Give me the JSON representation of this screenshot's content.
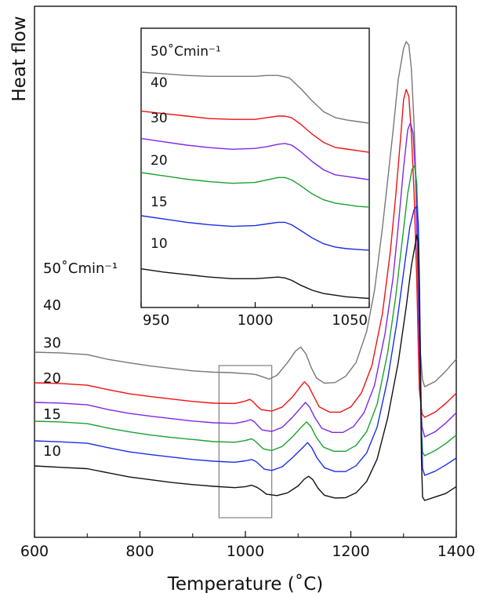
{
  "chart_data": [
    {
      "type": "line",
      "title": "",
      "xlabel": "Temperature (˚C)",
      "ylabel": "Heat flow",
      "xlim": [
        600,
        1400
      ],
      "x_ticks": [
        600,
        800,
        1000,
        1200,
        1400
      ],
      "x_tick_labels": [
        "600",
        "800",
        "1000",
        "1200",
        "1400"
      ],
      "y_ticks_shown": false,
      "grid": false,
      "legend": "series labels written at the left end of each curve",
      "highlight_box": {
        "x_range": [
          950,
          1050
        ],
        "color": "#888888"
      },
      "series": [
        {
          "name": "50˚Cmin⁻¹",
          "color": "#777777",
          "x": [
            600,
            650,
            700,
            740,
            780,
            820,
            860,
            900,
            940,
            970,
            1000,
            1010,
            1020,
            1030,
            1045,
            1060,
            1080,
            1095,
            1105,
            1115,
            1125,
            1135,
            1150,
            1170,
            1190,
            1210,
            1230,
            1245,
            1260,
            1270,
            1280,
            1290,
            1300,
            1305,
            1310,
            1315,
            1320,
            1325,
            1330,
            1332,
            1336,
            1340,
            1360,
            1380,
            1400
          ],
          "y": [
            1.0,
            0.98,
            0.93,
            0.79,
            0.69,
            0.6,
            0.53,
            0.46,
            0.42,
            0.41,
            0.38,
            0.37,
            0.35,
            0.3,
            0.22,
            0.33,
            0.7,
            1.03,
            1.15,
            0.95,
            0.55,
            0.25,
            0.1,
            0.12,
            0.3,
            0.7,
            1.6,
            2.8,
            4.6,
            6.0,
            7.4,
            8.9,
            9.8,
            10.0,
            9.9,
            9.2,
            7.6,
            5.3,
            2.6,
            1.0,
            0.2,
            0.0,
            0.15,
            0.45,
            0.8
          ]
        },
        {
          "name": "40",
          "color": "#ee1111",
          "x": [
            600,
            650,
            700,
            740,
            780,
            820,
            860,
            900,
            940,
            980,
            1000,
            1008,
            1015,
            1020,
            1030,
            1050,
            1070,
            1090,
            1105,
            1112,
            1120,
            1130,
            1140,
            1160,
            1180,
            1200,
            1220,
            1240,
            1260,
            1275,
            1285,
            1295,
            1300,
            1305,
            1310,
            1315,
            1320,
            1325,
            1328,
            1330,
            1335,
            1340,
            1360,
            1380,
            1400
          ],
          "y": [
            1.0,
            0.98,
            0.93,
            0.8,
            0.68,
            0.6,
            0.53,
            0.46,
            0.41,
            0.4,
            0.47,
            0.52,
            0.45,
            0.36,
            0.22,
            0.18,
            0.3,
            0.6,
            0.9,
            1.03,
            0.9,
            0.6,
            0.3,
            0.15,
            0.15,
            0.3,
            0.7,
            1.5,
            3.0,
            4.8,
            6.4,
            8.2,
            9.2,
            9.5,
            9.3,
            8.2,
            6.5,
            4.0,
            2.0,
            0.8,
            0.1,
            0.0,
            0.15,
            0.4,
            0.7
          ]
        },
        {
          "name": "30",
          "color": "#7d28e6",
          "x": [
            600,
            650,
            700,
            740,
            780,
            820,
            860,
            900,
            940,
            980,
            1000,
            1010,
            1017,
            1022,
            1032,
            1050,
            1070,
            1090,
            1107,
            1114,
            1122,
            1132,
            1145,
            1165,
            1185,
            1205,
            1225,
            1245,
            1265,
            1280,
            1290,
            1300,
            1308,
            1313,
            1318,
            1323,
            1326,
            1329,
            1332,
            1335,
            1340,
            1360,
            1380,
            1400
          ],
          "y": [
            1.0,
            0.98,
            0.93,
            0.79,
            0.68,
            0.6,
            0.53,
            0.46,
            0.41,
            0.39,
            0.45,
            0.5,
            0.44,
            0.35,
            0.2,
            0.16,
            0.28,
            0.58,
            0.88,
            1.0,
            0.86,
            0.55,
            0.25,
            0.13,
            0.13,
            0.3,
            0.7,
            1.5,
            3.0,
            4.6,
            6.1,
            7.8,
            8.9,
            9.1,
            8.8,
            7.5,
            5.5,
            3.2,
            1.3,
            0.3,
            0.0,
            0.15,
            0.4,
            0.7
          ]
        },
        {
          "name": "20",
          "color": "#1aa12e",
          "x": [
            600,
            650,
            700,
            740,
            780,
            820,
            860,
            900,
            940,
            980,
            1000,
            1012,
            1018,
            1024,
            1034,
            1050,
            1070,
            1090,
            1108,
            1116,
            1124,
            1134,
            1148,
            1168,
            1190,
            1210,
            1230,
            1250,
            1270,
            1285,
            1298,
            1308,
            1316,
            1321,
            1325,
            1328,
            1330,
            1332,
            1334,
            1336,
            1340,
            1360,
            1380,
            1400
          ],
          "y": [
            1.0,
            0.98,
            0.93,
            0.8,
            0.69,
            0.6,
            0.53,
            0.47,
            0.41,
            0.39,
            0.44,
            0.49,
            0.43,
            0.35,
            0.2,
            0.15,
            0.27,
            0.56,
            0.86,
            0.98,
            0.85,
            0.55,
            0.25,
            0.13,
            0.13,
            0.3,
            0.7,
            1.5,
            3.0,
            4.6,
            6.3,
            7.6,
            8.3,
            8.4,
            7.9,
            6.5,
            4.5,
            2.5,
            0.8,
            0.1,
            0.0,
            0.15,
            0.35,
            0.6
          ]
        },
        {
          "name": "15",
          "color": "#1a2ee6",
          "x": [
            600,
            650,
            700,
            740,
            780,
            820,
            860,
            900,
            940,
            980,
            1000,
            1012,
            1020,
            1026,
            1036,
            1050,
            1070,
            1090,
            1110,
            1118,
            1126,
            1136,
            1150,
            1170,
            1190,
            1210,
            1230,
            1250,
            1270,
            1288,
            1302,
            1312,
            1320,
            1325,
            1328,
            1330,
            1332,
            1334,
            1336,
            1340,
            1360,
            1380,
            1400
          ],
          "y": [
            1.0,
            0.97,
            0.93,
            0.8,
            0.68,
            0.6,
            0.53,
            0.46,
            0.41,
            0.38,
            0.42,
            0.46,
            0.4,
            0.32,
            0.18,
            0.14,
            0.25,
            0.52,
            0.82,
            0.95,
            0.8,
            0.5,
            0.22,
            0.11,
            0.11,
            0.28,
            0.65,
            1.4,
            2.8,
            4.5,
            6.1,
            7.2,
            7.7,
            7.8,
            7.3,
            5.8,
            3.5,
            1.3,
            0.2,
            0.0,
            0.12,
            0.3,
            0.5
          ]
        },
        {
          "name": "10",
          "color": "#111111",
          "x": [
            600,
            650,
            700,
            740,
            780,
            820,
            860,
            900,
            940,
            980,
            1000,
            1012,
            1022,
            1030,
            1040,
            1060,
            1080,
            1100,
            1112,
            1120,
            1128,
            1138,
            1150,
            1170,
            1190,
            1210,
            1230,
            1250,
            1270,
            1290,
            1305,
            1315,
            1322,
            1325,
            1328,
            1330,
            1332,
            1334,
            1336,
            1340,
            1360,
            1380,
            1400
          ],
          "y": [
            1.0,
            0.96,
            0.92,
            0.8,
            0.68,
            0.6,
            0.52,
            0.46,
            0.41,
            0.37,
            0.4,
            0.44,
            0.38,
            0.3,
            0.18,
            0.14,
            0.22,
            0.42,
            0.62,
            0.7,
            0.6,
            0.35,
            0.15,
            0.07,
            0.08,
            0.22,
            0.55,
            1.2,
            2.4,
            4.0,
            5.6,
            6.8,
            7.4,
            7.7,
            7.5,
            6.0,
            3.5,
            1.2,
            0.1,
            0.0,
            0.1,
            0.2,
            0.4
          ]
        }
      ]
    },
    {
      "type": "line",
      "title": "",
      "xlabel": "",
      "ylabel": "",
      "xlim": [
        950,
        1050
      ],
      "x_ticks": [
        950,
        1000,
        1050
      ],
      "x_tick_labels": [
        "950",
        "1000",
        "1050"
      ],
      "y_ticks_shown": false,
      "grid": false,
      "legend": "series labels written at the left end of each curve",
      "series": [
        {
          "name": "50˚Cmin⁻¹",
          "color": "#777777",
          "x": [
            950,
            960,
            970,
            980,
            990,
            1000,
            1005,
            1010,
            1015,
            1020,
            1025,
            1030,
            1035,
            1040,
            1045,
            1050
          ],
          "y": [
            0.6,
            0.58,
            0.56,
            0.55,
            0.55,
            0.55,
            0.56,
            0.56,
            0.53,
            0.4,
            0.25,
            0.12,
            0.05,
            0.02,
            0.0,
            -0.02
          ]
        },
        {
          "name": "40",
          "color": "#ee1111",
          "x": [
            950,
            960,
            970,
            980,
            990,
            1000,
            1005,
            1010,
            1013,
            1016,
            1020,
            1025,
            1030,
            1035,
            1040,
            1045,
            1050
          ],
          "y": [
            0.46,
            0.43,
            0.4,
            0.37,
            0.36,
            0.36,
            0.38,
            0.4,
            0.4,
            0.38,
            0.3,
            0.18,
            0.08,
            0.02,
            0.0,
            -0.02,
            -0.04
          ]
        },
        {
          "name": "30",
          "color": "#7d28e6",
          "x": [
            950,
            960,
            970,
            980,
            990,
            1000,
            1005,
            1010,
            1013,
            1016,
            1020,
            1025,
            1030,
            1035,
            1040,
            1045,
            1050
          ],
          "y": [
            0.48,
            0.44,
            0.4,
            0.37,
            0.35,
            0.36,
            0.38,
            0.41,
            0.42,
            0.4,
            0.32,
            0.2,
            0.1,
            0.04,
            0.02,
            0.0,
            -0.02
          ]
        },
        {
          "name": "20",
          "color": "#1aa12e",
          "x": [
            950,
            960,
            970,
            980,
            990,
            1000,
            1005,
            1010,
            1013,
            1016,
            1020,
            1025,
            1030,
            1035,
            1040,
            1045,
            1050
          ],
          "y": [
            0.4,
            0.36,
            0.32,
            0.29,
            0.27,
            0.28,
            0.31,
            0.34,
            0.34,
            0.31,
            0.24,
            0.14,
            0.07,
            0.03,
            0.01,
            -0.01,
            -0.02
          ]
        },
        {
          "name": "15",
          "color": "#1a2ee6",
          "x": [
            950,
            960,
            970,
            980,
            990,
            1000,
            1005,
            1010,
            1013,
            1016,
            1020,
            1025,
            1030,
            1035,
            1040,
            1045,
            1050
          ],
          "y": [
            0.4,
            0.36,
            0.32,
            0.29,
            0.27,
            0.28,
            0.3,
            0.32,
            0.32,
            0.29,
            0.22,
            0.13,
            0.06,
            0.02,
            0.0,
            -0.01,
            -0.02
          ]
        },
        {
          "name": "10",
          "color": "#111111",
          "x": [
            950,
            960,
            970,
            980,
            990,
            1000,
            1005,
            1010,
            1013,
            1016,
            1020,
            1025,
            1030,
            1035,
            1040,
            1045,
            1050
          ],
          "y": [
            0.26,
            0.22,
            0.19,
            0.16,
            0.14,
            0.14,
            0.15,
            0.16,
            0.15,
            0.12,
            0.06,
            0.0,
            -0.04,
            -0.06,
            -0.08,
            -0.09,
            -0.1
          ]
        }
      ]
    }
  ]
}
